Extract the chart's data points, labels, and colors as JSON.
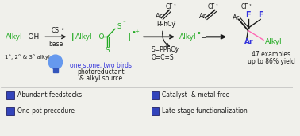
{
  "bg_color": "#f0f0eb",
  "green": "#22aa22",
  "blue": "#3333dd",
  "black": "#1a1a1a",
  "pink": "#ff69b4",
  "legend_color": "#3344bb",
  "legend_items_left": [
    "Abundant feedstocks",
    "One-pot precedure"
  ],
  "legend_items_right": [
    "Catalyst- & metal-free",
    "Late-stage functionalization"
  ]
}
